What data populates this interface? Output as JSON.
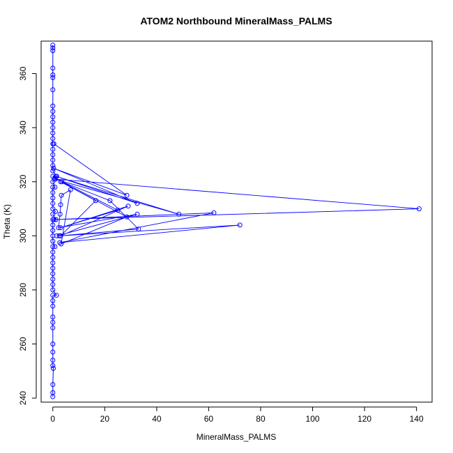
{
  "chart_data": {
    "type": "scatter",
    "title": "ATOM2 Northbound MineralMass_PALMS",
    "xlabel": "MineralMass_PALMS",
    "ylabel": "Theta (K)",
    "xlim": [
      -4.5,
      146
    ],
    "ylim": [
      238.5,
      372
    ],
    "x_ticks": [
      0,
      20,
      40,
      60,
      80,
      100,
      120,
      140
    ],
    "y_ticks": [
      240,
      260,
      280,
      300,
      320,
      340,
      360
    ],
    "grid": false,
    "legend": "none",
    "point_style": "open-circle",
    "line_connected": true,
    "colors": {
      "series": "#0000ff",
      "axis": "#000000"
    },
    "series": [
      {
        "zero_column": [
          {
            "x": 0,
            "y": 240.5
          },
          {
            "x": 0,
            "y": 242
          },
          {
            "x": 0,
            "y": 245
          },
          {
            "x": 0.2,
            "y": 251
          },
          {
            "x": 0,
            "y": 252
          },
          {
            "x": 0,
            "y": 254
          },
          {
            "x": 0,
            "y": 257
          },
          {
            "x": 0,
            "y": 260
          },
          {
            "x": 0,
            "y": 266
          },
          {
            "x": 0,
            "y": 268
          },
          {
            "x": 0,
            "y": 270
          },
          {
            "x": 0,
            "y": 274
          },
          {
            "x": 0,
            "y": 276
          },
          {
            "x": 0,
            "y": 278
          },
          {
            "x": 0,
            "y": 280
          },
          {
            "x": 0,
            "y": 282
          },
          {
            "x": 0,
            "y": 284
          },
          {
            "x": 0,
            "y": 286
          },
          {
            "x": 0,
            "y": 288
          },
          {
            "x": 0,
            "y": 290
          },
          {
            "x": 0,
            "y": 292
          },
          {
            "x": 0,
            "y": 294
          },
          {
            "x": 0,
            "y": 296
          },
          {
            "x": 0,
            "y": 298
          },
          {
            "x": 0,
            "y": 300
          },
          {
            "x": 0,
            "y": 302
          },
          {
            "x": 0,
            "y": 304
          },
          {
            "x": 0,
            "y": 306
          },
          {
            "x": 0,
            "y": 308
          },
          {
            "x": 0,
            "y": 310
          },
          {
            "x": 0,
            "y": 312
          },
          {
            "x": 0,
            "y": 314
          },
          {
            "x": 0,
            "y": 316
          },
          {
            "x": 0,
            "y": 318
          },
          {
            "x": 0,
            "y": 320
          },
          {
            "x": 0,
            "y": 322
          },
          {
            "x": 0,
            "y": 324
          },
          {
            "x": 0,
            "y": 326
          },
          {
            "x": 0,
            "y": 328
          },
          {
            "x": 0,
            "y": 330
          },
          {
            "x": 0,
            "y": 332
          },
          {
            "x": 0,
            "y": 334
          },
          {
            "x": 0,
            "y": 336
          },
          {
            "x": 0,
            "y": 338
          },
          {
            "x": 0,
            "y": 340
          },
          {
            "x": 0,
            "y": 342
          },
          {
            "x": 0,
            "y": 344
          },
          {
            "x": 0,
            "y": 346
          },
          {
            "x": 0,
            "y": 348
          },
          {
            "x": 0,
            "y": 354
          },
          {
            "x": 0,
            "y": 358.5
          },
          {
            "x": 0,
            "y": 359.5
          },
          {
            "x": 0,
            "y": 362
          },
          {
            "x": 0,
            "y": 368.5
          },
          {
            "x": 0,
            "y": 369.5
          },
          {
            "x": 0,
            "y": 370.5
          },
          {
            "x": 1.4,
            "y": 278
          },
          {
            "x": 0.8,
            "y": 296
          },
          {
            "x": 1.2,
            "y": 306
          },
          {
            "x": 1.0,
            "y": 309
          },
          {
            "x": 0.8,
            "y": 318
          },
          {
            "x": 1.0,
            "y": 321
          },
          {
            "x": 1.5,
            "y": 322
          }
        ],
        "trace": [
          {
            "x": 0.4,
            "y": 334
          },
          {
            "x": 28.5,
            "y": 315
          },
          {
            "x": 0.3,
            "y": 325
          },
          {
            "x": 32.5,
            "y": 312
          },
          {
            "x": 1.2,
            "y": 322
          },
          {
            "x": 48.5,
            "y": 308
          },
          {
            "x": 0.6,
            "y": 321
          },
          {
            "x": 141,
            "y": 310
          },
          {
            "x": 0.5,
            "y": 306
          },
          {
            "x": 62,
            "y": 308.5
          },
          {
            "x": 2.7,
            "y": 297.5
          },
          {
            "x": 72,
            "y": 304
          },
          {
            "x": 2.5,
            "y": 300
          },
          {
            "x": 33,
            "y": 302.5
          },
          {
            "x": 22,
            "y": 313
          },
          {
            "x": 3.5,
            "y": 320
          },
          {
            "x": 25,
            "y": 309.5
          },
          {
            "x": 3.0,
            "y": 303
          },
          {
            "x": 29,
            "y": 311
          },
          {
            "x": 3.0,
            "y": 300
          },
          {
            "x": 16.5,
            "y": 313
          },
          {
            "x": 3.0,
            "y": 320
          },
          {
            "x": 28.5,
            "y": 307
          },
          {
            "x": 3.2,
            "y": 297
          },
          {
            "x": 6.8,
            "y": 317
          },
          {
            "x": 3.3,
            "y": 315
          },
          {
            "x": 3.0,
            "y": 311.5
          },
          {
            "x": 2.8,
            "y": 308
          },
          {
            "x": 2.2,
            "y": 303
          },
          {
            "x": 32.5,
            "y": 308
          },
          {
            "x": 1.5,
            "y": 300
          }
        ]
      }
    ]
  }
}
